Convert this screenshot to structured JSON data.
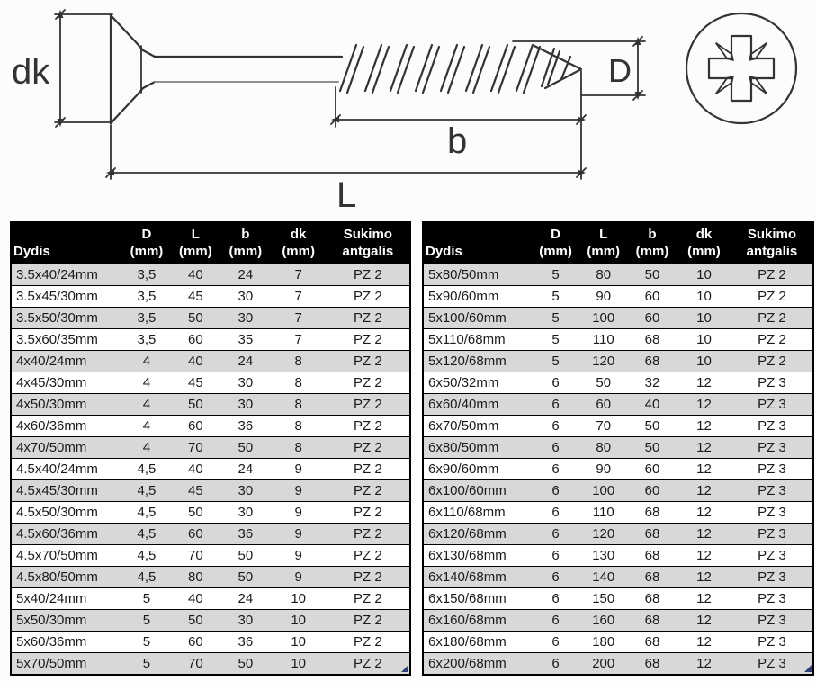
{
  "diagram": {
    "label_dk": "dk",
    "label_D": "D",
    "label_b": "b",
    "label_L": "L",
    "recess_type": "pozidriv-cross"
  },
  "table_header": {
    "size_col": "Dydis",
    "cols": [
      {
        "label": "D",
        "unit": "(mm)"
      },
      {
        "label": "L",
        "unit": "(mm)"
      },
      {
        "label": "b",
        "unit": "(mm)"
      },
      {
        "label": "dk",
        "unit": "(mm)"
      }
    ],
    "drive_col": {
      "line1": "Sukimo",
      "line2": "antgalis"
    }
  },
  "left_table_rows": [
    [
      "3.5x40/24mm",
      "3,5",
      "40",
      "24",
      "7",
      "PZ 2"
    ],
    [
      "3.5x45/30mm",
      "3,5",
      "45",
      "30",
      "7",
      "PZ 2"
    ],
    [
      "3.5x50/30mm",
      "3,5",
      "50",
      "30",
      "7",
      "PZ 2"
    ],
    [
      "3.5x60/35mm",
      "3,5",
      "60",
      "35",
      "7",
      "PZ 2"
    ],
    [
      "4x40/24mm",
      "4",
      "40",
      "24",
      "8",
      "PZ 2"
    ],
    [
      "4x45/30mm",
      "4",
      "45",
      "30",
      "8",
      "PZ 2"
    ],
    [
      "4x50/30mm",
      "4",
      "50",
      "30",
      "8",
      "PZ 2"
    ],
    [
      "4x60/36mm",
      "4",
      "60",
      "36",
      "8",
      "PZ 2"
    ],
    [
      "4x70/50mm",
      "4",
      "70",
      "50",
      "8",
      "PZ 2"
    ],
    [
      "4.5x40/24mm",
      "4,5",
      "40",
      "24",
      "9",
      "PZ 2"
    ],
    [
      "4.5x45/30mm",
      "4,5",
      "45",
      "30",
      "9",
      "PZ 2"
    ],
    [
      "4.5x50/30mm",
      "4,5",
      "50",
      "30",
      "9",
      "PZ 2"
    ],
    [
      "4.5x60/36mm",
      "4,5",
      "60",
      "36",
      "9",
      "PZ 2"
    ],
    [
      "4.5x70/50mm",
      "4,5",
      "70",
      "50",
      "9",
      "PZ 2"
    ],
    [
      "4.5x80/50mm",
      "4,5",
      "80",
      "50",
      "9",
      "PZ 2"
    ],
    [
      "5x40/24mm",
      "5",
      "40",
      "24",
      "10",
      "PZ 2"
    ],
    [
      "5x50/30mm",
      "5",
      "50",
      "30",
      "10",
      "PZ 2"
    ],
    [
      "5x60/36mm",
      "5",
      "60",
      "36",
      "10",
      "PZ 2"
    ],
    [
      "5x70/50mm",
      "5",
      "70",
      "50",
      "10",
      "PZ 2"
    ]
  ],
  "right_table_rows": [
    [
      "5x80/50mm",
      "5",
      "80",
      "50",
      "10",
      "PZ 2"
    ],
    [
      "5x90/60mm",
      "5",
      "90",
      "60",
      "10",
      "PZ 2"
    ],
    [
      "5x100/60mm",
      "5",
      "100",
      "60",
      "10",
      "PZ 2"
    ],
    [
      "5x110/68mm",
      "5",
      "110",
      "68",
      "10",
      "PZ 2"
    ],
    [
      "5x120/68mm",
      "5",
      "120",
      "68",
      "10",
      "PZ 2"
    ],
    [
      "6x50/32mm",
      "6",
      "50",
      "32",
      "12",
      "PZ 3"
    ],
    [
      "6x60/40mm",
      "6",
      "60",
      "40",
      "12",
      "PZ 3"
    ],
    [
      "6x70/50mm",
      "6",
      "70",
      "50",
      "12",
      "PZ 3"
    ],
    [
      "6x80/50mm",
      "6",
      "80",
      "50",
      "12",
      "PZ 3"
    ],
    [
      "6x90/60mm",
      "6",
      "90",
      "60",
      "12",
      "PZ 3"
    ],
    [
      "6x100/60mm",
      "6",
      "100",
      "60",
      "12",
      "PZ 3"
    ],
    [
      "6x110/68mm",
      "6",
      "110",
      "68",
      "12",
      "PZ 3"
    ],
    [
      "6x120/68mm",
      "6",
      "120",
      "68",
      "12",
      "PZ 3"
    ],
    [
      "6x130/68mm",
      "6",
      "130",
      "68",
      "12",
      "PZ 3"
    ],
    [
      "6x140/68mm",
      "6",
      "140",
      "68",
      "12",
      "PZ 3"
    ],
    [
      "6x150/68mm",
      "6",
      "150",
      "68",
      "12",
      "PZ 3"
    ],
    [
      "6x160/68mm",
      "6",
      "160",
      "68",
      "12",
      "PZ 3"
    ],
    [
      "6x180/68mm",
      "6",
      "180",
      "68",
      "12",
      "PZ 3"
    ],
    [
      "6x200/68mm",
      "6",
      "200",
      "68",
      "12",
      "PZ 3"
    ]
  ],
  "colors": {
    "page_bg": "#fcfcfc",
    "line": "#333333",
    "header_bg": "#000000",
    "header_text": "#ffffff",
    "row_alt": "#d8d8d8",
    "row_text": "#1a1a1a",
    "corner_marker": "#2b3f7e"
  }
}
